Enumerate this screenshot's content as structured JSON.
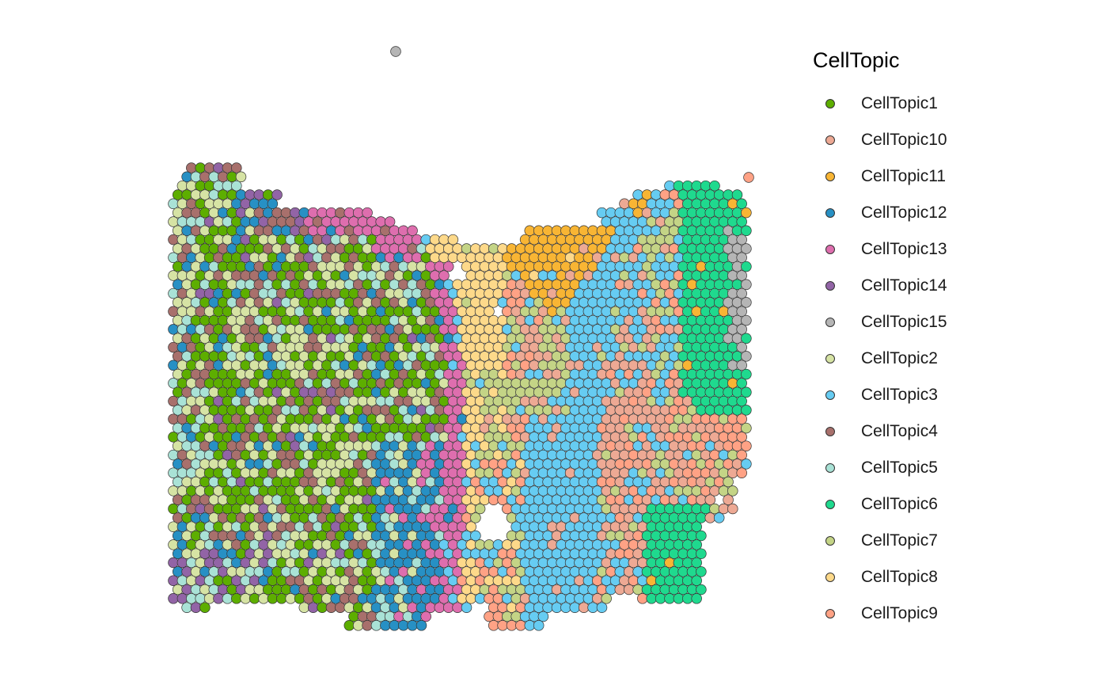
{
  "chart_data": {
    "type": "scatter",
    "title": "",
    "xlabel": "",
    "ylabel": "",
    "grid": false,
    "legend_position": "right",
    "legend": {
      "title": "CellTopic",
      "entries": [
        {
          "name": "CellTopic1",
          "color": "#5DAE00"
        },
        {
          "name": "CellTopic10",
          "color": "#EDA994"
        },
        {
          "name": "CellTopic11",
          "color": "#F8B534"
        },
        {
          "name": "CellTopic12",
          "color": "#2790C4"
        },
        {
          "name": "CellTopic13",
          "color": "#DE6EAE"
        },
        {
          "name": "CellTopic14",
          "color": "#9264A6"
        },
        {
          "name": "CellTopic15",
          "color": "#B5B5B5"
        },
        {
          "name": "CellTopic2",
          "color": "#D6E3A4"
        },
        {
          "name": "CellTopic3",
          "color": "#66CCF2"
        },
        {
          "name": "CellTopic4",
          "color": "#A8706C"
        },
        {
          "name": "CellTopic5",
          "color": "#A9E2D6"
        },
        {
          "name": "CellTopic6",
          "color": "#1FD98E"
        },
        {
          "name": "CellTopic7",
          "color": "#C4D486"
        },
        {
          "name": "CellTopic8",
          "color": "#FDD98A"
        },
        {
          "name": "CellTopic9",
          "color": "#FFA285"
        }
      ]
    }
  }
}
